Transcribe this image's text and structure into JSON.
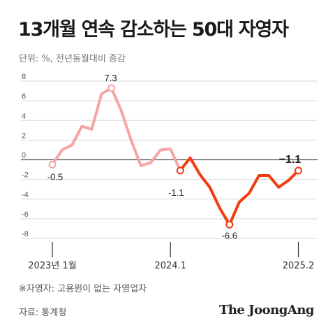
{
  "title": "13개월 연속 감소하는 50대 자영자",
  "subtitle": "단위: %, 전년동월대비 증감",
  "footnote": "※자영자: 고용원이 없는 자영업자",
  "source": "자료: 통계청",
  "logo": "The JoongAng",
  "chart_data": {
    "type": "line",
    "title": "13개월 연속 감소하는 50대 자영자",
    "ylabel": "단위: %, 전년동월대비 증감",
    "ylim": [
      -8,
      8
    ],
    "yticks": [
      8,
      6,
      4,
      2,
      0,
      -2,
      -4,
      -6,
      -8
    ],
    "xtick_labels": [
      "2023년 1월",
      "2024.1",
      "2025.2"
    ],
    "x": [
      "2023.01",
      "2023.02",
      "2023.03",
      "2023.04",
      "2023.05",
      "2023.06",
      "2023.07",
      "2023.08",
      "2023.09",
      "2023.10",
      "2023.11",
      "2023.12",
      "2024.01",
      "2024.02",
      "2024.03",
      "2024.04",
      "2024.05",
      "2024.06",
      "2024.07",
      "2024.08",
      "2024.09",
      "2024.10",
      "2024.11",
      "2024.12",
      "2025.01",
      "2025.02"
    ],
    "series": [
      {
        "name": "",
        "values": [
          -0.5,
          1.0,
          1.5,
          3.4,
          3.1,
          6.7,
          7.3,
          5.0,
          2.0,
          -0.6,
          -0.3,
          1.0,
          1.1,
          -1.1,
          0.2,
          -1.5,
          -2.8,
          -4.9,
          -6.6,
          -4.3,
          -3.4,
          -1.6,
          -1.6,
          -2.8,
          -2.1,
          -1.1
        ]
      }
    ],
    "data_labels": [
      {
        "text": "-0.5",
        "index": 0
      },
      {
        "text": "7.3",
        "index": 6
      },
      {
        "text": "-1.1",
        "index": 13
      },
      {
        "text": "-6.6",
        "index": 18
      },
      {
        "text": "−1.1",
        "index": 25
      }
    ],
    "colors": {
      "past": "#f6a5a5",
      "recent": "#f03c0f",
      "grid": "#d9d9d9",
      "zero": "#555555"
    },
    "grid": true
  }
}
